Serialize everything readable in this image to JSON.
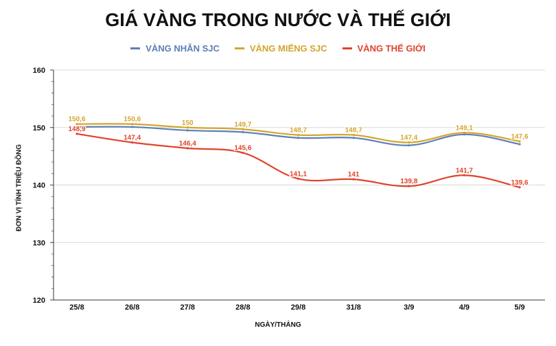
{
  "chart_data": {
    "type": "line",
    "title": "GIÁ VÀNG TRONG NƯỚC VÀ THẾ GIỚI",
    "xlabel": "NGÀY/THÁNG",
    "ylabel": "ĐƠN VỊ TÍNH TRIỆU ĐỒNG",
    "categories": [
      "25/8",
      "26/8",
      "27/8",
      "28/8",
      "29/8",
      "31/8",
      "3/9",
      "4/9",
      "5/9"
    ],
    "ylim": [
      120,
      160
    ],
    "yticks": [
      "160",
      "150",
      "140",
      "130",
      "120"
    ],
    "grid": true,
    "legend_position": "top-center",
    "series": [
      {
        "name": "VÀNG NHẪN SJC",
        "color": "#5b7fb5",
        "values": [
          150.1,
          150.1,
          149.5,
          149.2,
          148.2,
          148.2,
          146.9,
          148.8,
          147.1
        ],
        "labels": []
      },
      {
        "name": "VÀNG MIẾNG SJC",
        "color": "#d4a52c",
        "values": [
          150.6,
          150.6,
          150,
          149.7,
          148.7,
          148.7,
          147.4,
          149.1,
          147.6
        ],
        "labels": [
          "150,6",
          "150,6",
          "150",
          "149,7",
          "148,7",
          "148,7",
          "147,4",
          "149,1",
          "147,6"
        ]
      },
      {
        "name": "VÀNG THẾ GIỚI",
        "color": "#e0432b",
        "values": [
          148.9,
          147.4,
          146.4,
          145.6,
          141.1,
          141,
          139.8,
          141.7,
          139.6
        ],
        "labels": [
          "148,9",
          "147,4",
          "146,4",
          "145,6",
          "141,1",
          "141",
          "139,8",
          "141,7",
          "139,6"
        ]
      }
    ]
  }
}
